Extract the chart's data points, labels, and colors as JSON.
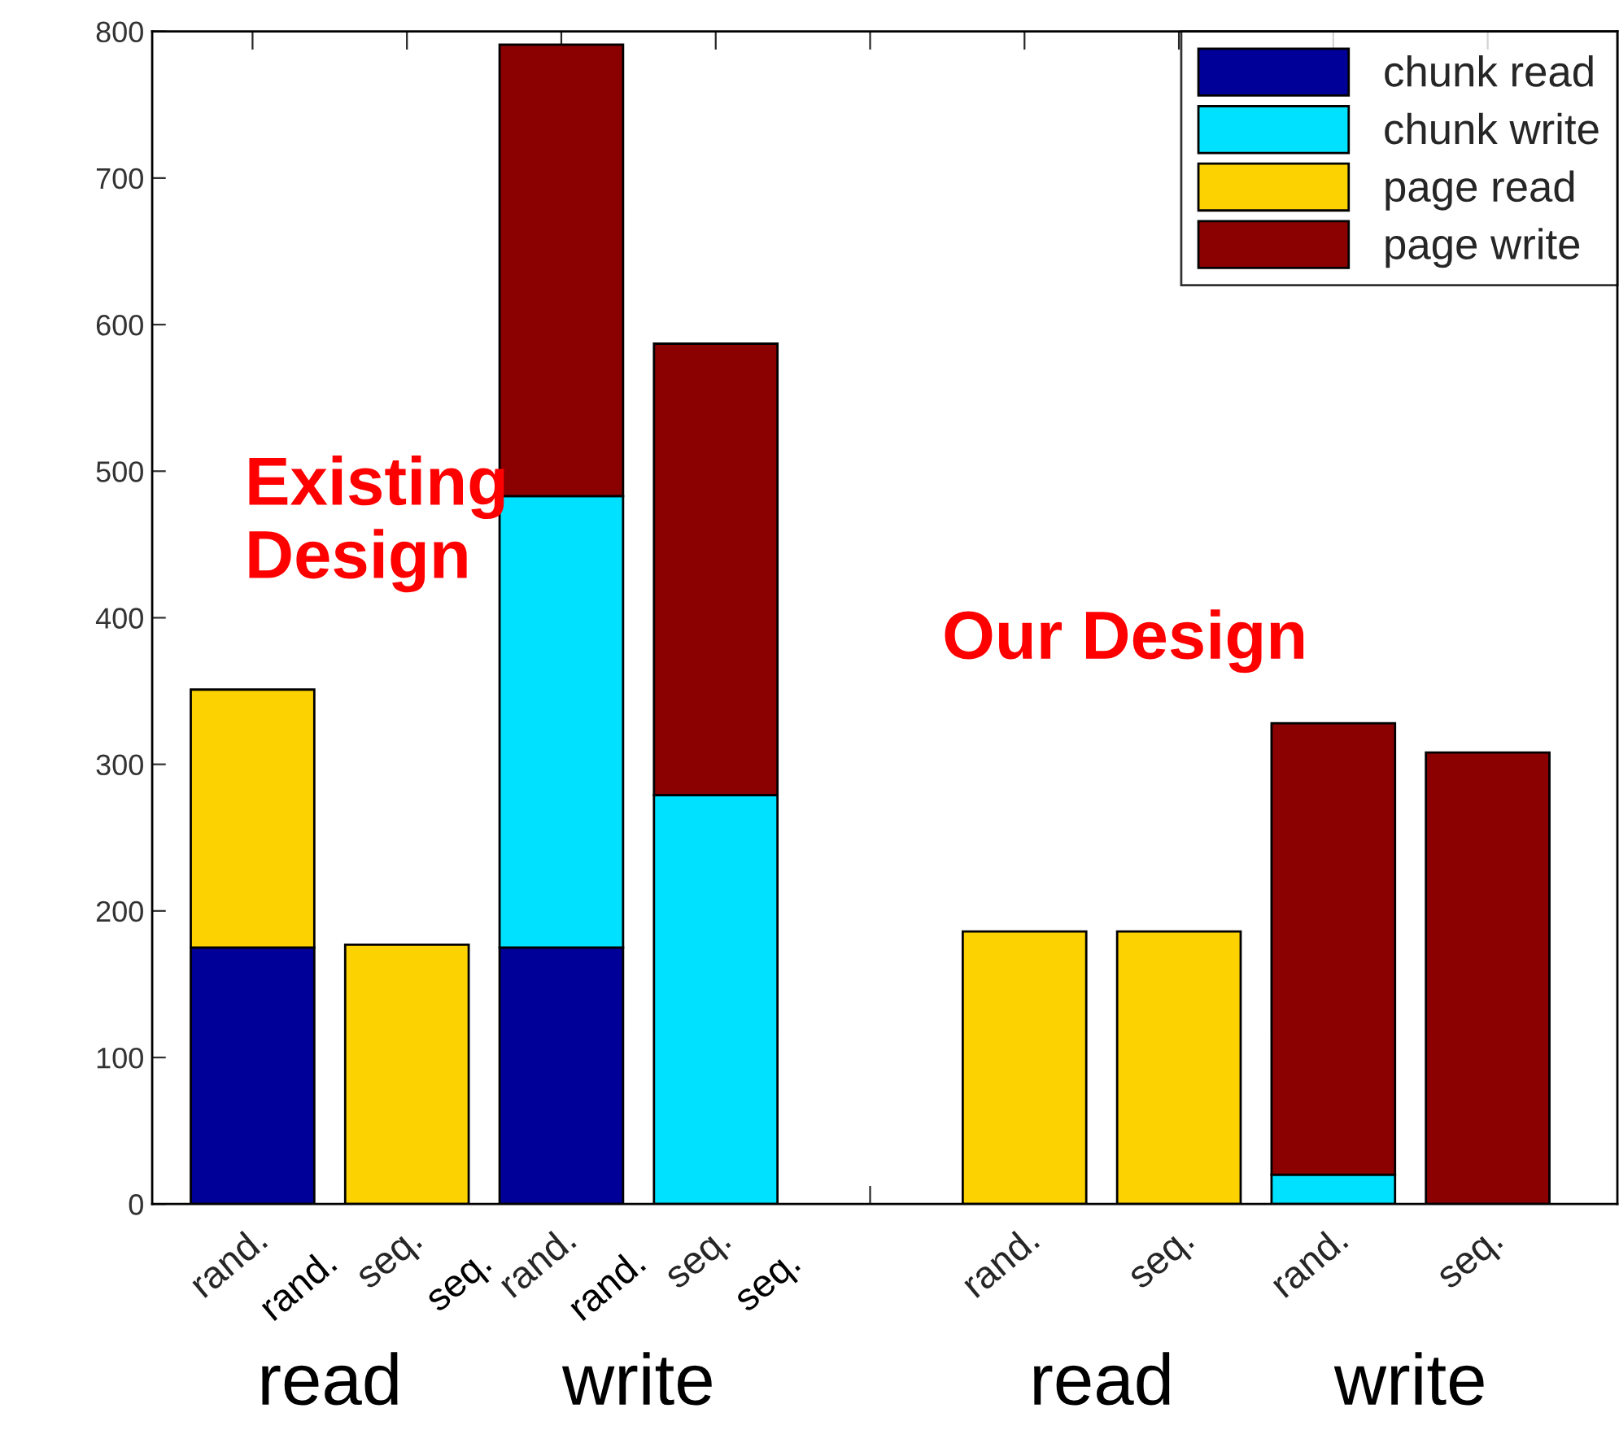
{
  "chart_data": {
    "type": "bar",
    "stacked": true,
    "categories": [
      "rand.",
      "seq.",
      "rand.",
      "seq.",
      null,
      "rand.",
      "seq.",
      "rand.",
      "seq."
    ],
    "series": [
      {
        "name": "chunk read",
        "color": "#000099",
        "values": [
          175,
          0,
          175,
          0,
          null,
          0,
          0,
          0,
          0
        ]
      },
      {
        "name": "chunk write",
        "color": "#00e1ff",
        "values": [
          0,
          0,
          308,
          279,
          null,
          0,
          0,
          20,
          0
        ]
      },
      {
        "name": "page read",
        "color": "#fcd200",
        "values": [
          176,
          177,
          0,
          0,
          null,
          186,
          186,
          0,
          0
        ]
      },
      {
        "name": "page write",
        "color": "#8b0000",
        "values": [
          0,
          0,
          308,
          308,
          null,
          0,
          0,
          308,
          308
        ]
      }
    ],
    "ylim": [
      0,
      800
    ],
    "yticks": [
      0,
      100,
      200,
      300,
      400,
      500,
      600,
      700,
      800
    ],
    "grid": false,
    "legend": "top right",
    "annotations": [
      "Existing\nDesign",
      "Our Design",
      "read",
      "write",
      "read",
      "write",
      "rand.",
      "seq.",
      "rand.",
      "seq."
    ]
  }
}
